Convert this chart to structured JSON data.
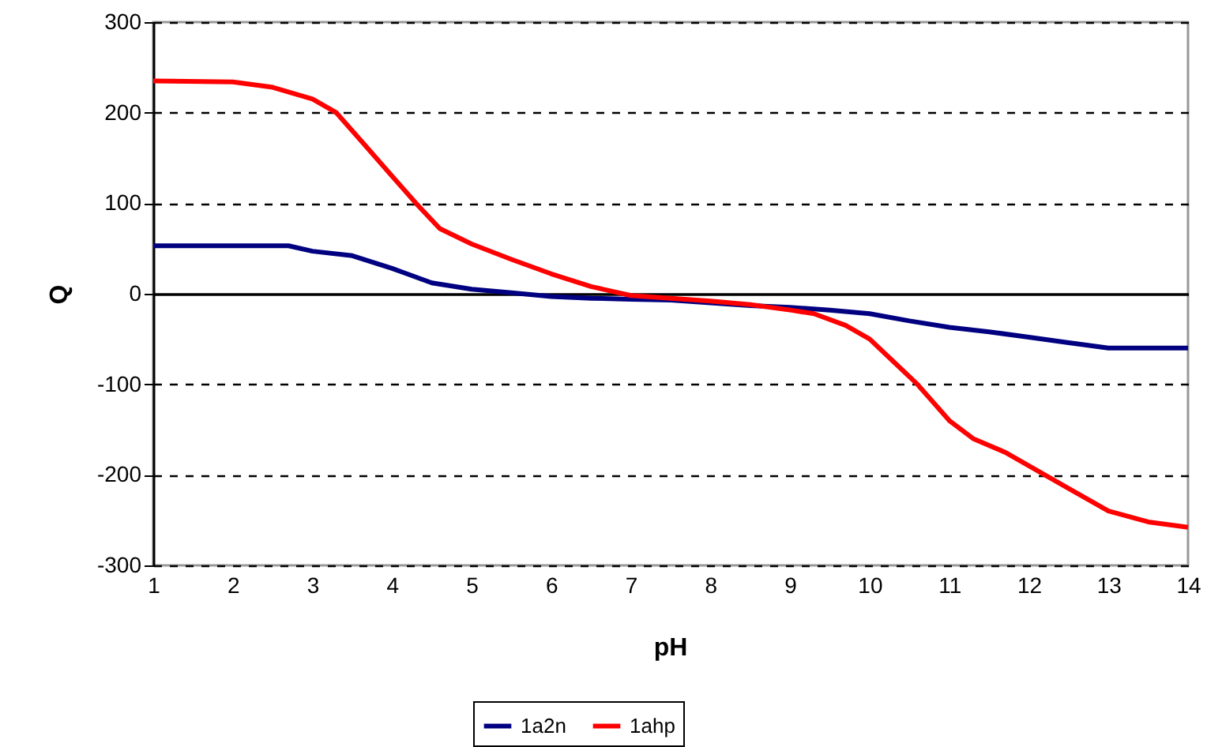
{
  "chart_data": {
    "type": "line",
    "xlabel": "pH",
    "ylabel": "Q",
    "xlim": [
      1,
      14
    ],
    "xticks": [
      1,
      2,
      3,
      4,
      5,
      6,
      7,
      8,
      9,
      10,
      11,
      12,
      13,
      14
    ],
    "ylim": [
      -300,
      300
    ],
    "yticks": [
      -300,
      -200,
      -100,
      0,
      100,
      200,
      300
    ],
    "grid": "y",
    "legend": "bottom",
    "marker": "none",
    "line_style": "solid",
    "series": [
      {
        "name": "1a2n",
        "color": "#000080",
        "x": [
          1,
          2.7,
          3,
          3.5,
          4,
          4.5,
          5,
          5.5,
          6,
          6.5,
          7,
          7.5,
          8,
          8.5,
          9,
          9.5,
          10,
          10.5,
          11,
          11.5,
          12,
          12.5,
          13,
          13.5,
          14
        ],
        "values": [
          53,
          53,
          47,
          42,
          28,
          12,
          5,
          1,
          -3,
          -5,
          -6,
          -7,
          -10,
          -13,
          -15,
          -18,
          -22,
          -30,
          -37,
          -42,
          -48,
          -54,
          -60,
          -60,
          -60
        ]
      },
      {
        "name": "1ahp",
        "color": "#ff0000",
        "x": [
          1,
          2,
          2.5,
          3,
          3.3,
          3.6,
          4,
          4.3,
          4.6,
          5,
          5.5,
          6,
          6.5,
          7,
          7.5,
          8,
          8.5,
          9,
          9.3,
          9.7,
          10,
          10.3,
          10.6,
          11,
          11.3,
          11.7,
          12,
          12.5,
          13,
          13.5,
          14
        ],
        "values": [
          235,
          234,
          228,
          215,
          200,
          170,
          130,
          100,
          72,
          55,
          38,
          22,
          8,
          -2,
          -5,
          -8,
          -12,
          -18,
          -22,
          -35,
          -50,
          -75,
          -100,
          -140,
          -160,
          -175,
          -190,
          -215,
          -240,
          -252,
          -258
        ]
      }
    ]
  }
}
